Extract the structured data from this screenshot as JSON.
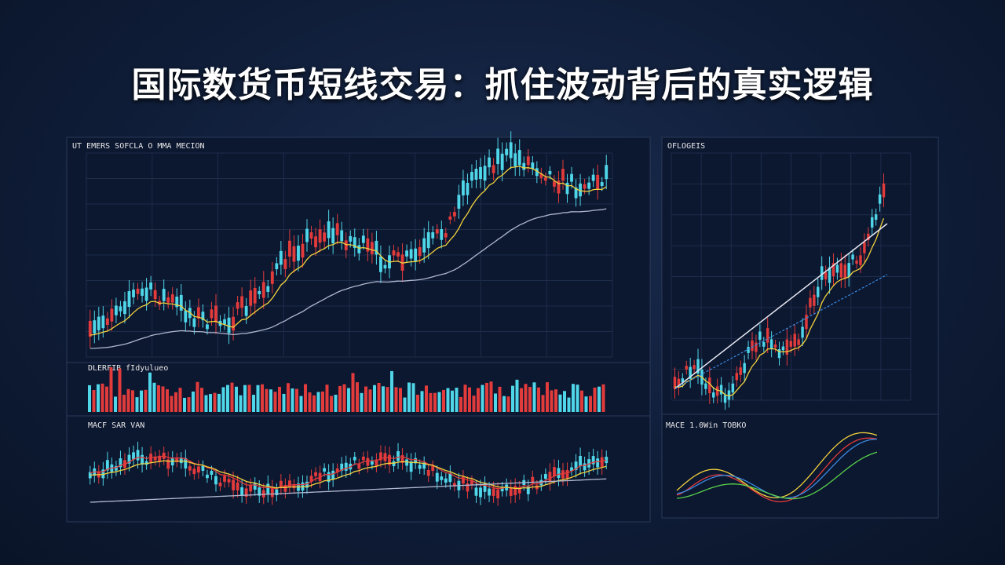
{
  "header": {
    "title": "国际数货币短线交易：抓住波动背后的真实逻辑"
  },
  "panels": [
    {
      "label": "UT EMERS SOFCLA  O MMA  MECION"
    },
    {
      "label": "DLERFIB  fIdyulueo"
    },
    {
      "label": "MACF  SAR  VAN"
    },
    {
      "label": "OFLOGEIS"
    },
    {
      "label": "MACE  1.0Win TOBKO"
    }
  ]
}
